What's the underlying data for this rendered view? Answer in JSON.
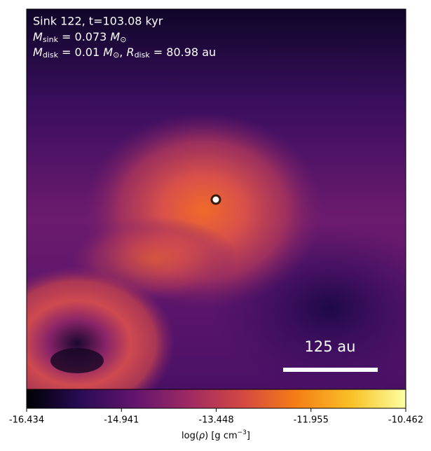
{
  "figure": {
    "annotations": {
      "line1": "Sink 122, t=103.08 kyr",
      "line2": [
        "M",
        "sink",
        " = 0.073 ",
        "M",
        "⊙"
      ],
      "line3": [
        "M",
        "disk",
        " = 0.01 ",
        "M",
        "⊙",
        ", ",
        "R",
        "disk",
        " = 80.98 au"
      ]
    },
    "scalebar": "125 au",
    "colorbar": {
      "lim": [
        -16.434,
        -10.462
      ],
      "ticks": [
        -16.434,
        -14.941,
        -13.448,
        -11.955,
        -10.462
      ],
      "label": [
        "log(",
        "ρ",
        ") [g cm",
        "−3",
        "]"
      ]
    }
  }
}
